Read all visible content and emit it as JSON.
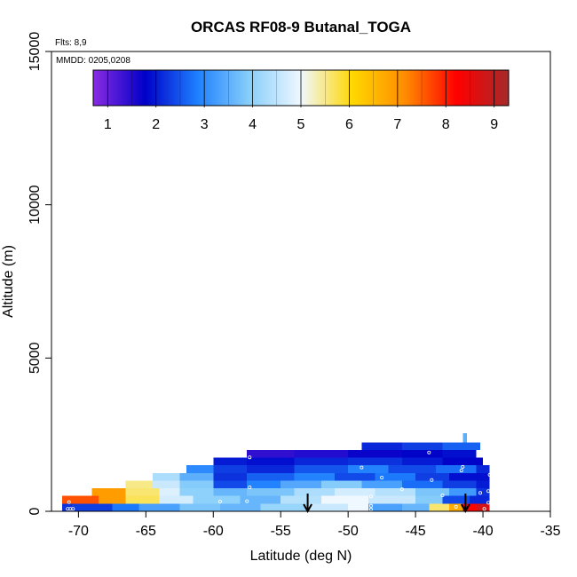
{
  "chart_data": {
    "type": "heatmap",
    "title": "ORCAS RF08-9 Butanal_TOGA",
    "xlabel": "Latitude (deg N)",
    "ylabel": "Altitude (m)",
    "flights_note": "Flts: 8,9",
    "date_note": "MMDD: 0205,0208",
    "xlim": [
      -72,
      -35
    ],
    "ylim": [
      0,
      15000
    ],
    "x_ticks": [
      -70,
      -65,
      -60,
      -55,
      -50,
      -45,
      -40,
      -35
    ],
    "y_ticks": [
      0,
      5000,
      10000,
      15000
    ],
    "colorbar": {
      "min": 0.7,
      "max": 9.3,
      "ticks": [
        1,
        2,
        3,
        4,
        5,
        6,
        7,
        8,
        9
      ],
      "colors": [
        "#8a2be2",
        "#0000c8",
        "#1e7fff",
        "#87cefa",
        "#f0f8ff",
        "#ffd700",
        "#ff8c00",
        "#ff0000",
        "#a52a2a"
      ]
    },
    "arrows_x": [
      -53,
      -41.3
    ],
    "rows": [
      {
        "y0": 0,
        "y1": 250,
        "segments": [
          {
            "x0": -71.2,
            "x1": -70.5,
            "v": 2.2
          },
          {
            "x0": -70.5,
            "x1": -67.5,
            "v": 2.3
          },
          {
            "x0": -67.5,
            "x1": -65.5,
            "v": 2.8
          },
          {
            "x0": -65.5,
            "x1": -62.5,
            "v": 3.3
          },
          {
            "x0": -62.5,
            "x1": -59.5,
            "v": 3.8
          },
          {
            "x0": -59.5,
            "x1": -56.5,
            "v": 3.6
          },
          {
            "x0": -56.5,
            "x1": -53,
            "v": 4.1
          },
          {
            "x0": -53,
            "x1": -50,
            "v": 4.6
          },
          {
            "x0": -50,
            "x1": -48.5,
            "v": 5.0
          },
          {
            "x0": -48.5,
            "x1": -46,
            "v": 3.3
          },
          {
            "x0": -46,
            "x1": -44,
            "v": 3.6
          },
          {
            "x0": -44,
            "x1": -42.5,
            "v": 5.6
          },
          {
            "x0": -42.5,
            "x1": -41.5,
            "v": 6.7
          },
          {
            "x0": -41.5,
            "x1": -40.5,
            "v": 8.2
          },
          {
            "x0": -40.5,
            "x1": -39.5,
            "v": 8.7
          }
        ]
      },
      {
        "y0": 250,
        "y1": 500,
        "segments": [
          {
            "x0": -71.2,
            "x1": -68.5,
            "v": 7.6
          },
          {
            "x0": -68.5,
            "x1": -66.5,
            "v": 6.9
          },
          {
            "x0": -66.5,
            "x1": -64,
            "v": 5.7
          },
          {
            "x0": -64,
            "x1": -61.5,
            "v": 4.7
          },
          {
            "x0": -61.5,
            "x1": -58,
            "v": 4.0
          },
          {
            "x0": -58,
            "x1": -55,
            "v": 3.6
          },
          {
            "x0": -55,
            "x1": -52,
            "v": 4.4
          },
          {
            "x0": -52,
            "x1": -48.5,
            "v": 5.0
          },
          {
            "x0": -48.5,
            "x1": -45,
            "v": 4.6
          },
          {
            "x0": -45,
            "x1": -43,
            "v": 3.9
          },
          {
            "x0": -43,
            "x1": -41,
            "v": 2.4
          },
          {
            "x0": -41,
            "x1": -39.5,
            "v": 2.1
          }
        ]
      },
      {
        "y0": 500,
        "y1": 750,
        "segments": [
          {
            "x0": -69,
            "x1": -66.5,
            "v": 6.9
          },
          {
            "x0": -66.5,
            "x1": -64,
            "v": 5.6
          },
          {
            "x0": -64,
            "x1": -62.5,
            "v": 4.8
          },
          {
            "x0": -62.5,
            "x1": -60,
            "v": 4.0
          },
          {
            "x0": -60,
            "x1": -57.5,
            "v": 3.6
          },
          {
            "x0": -57.5,
            "x1": -54,
            "v": 3.8
          },
          {
            "x0": -54,
            "x1": -51,
            "v": 4.3
          },
          {
            "x0": -51,
            "x1": -48,
            "v": 4.7
          },
          {
            "x0": -48,
            "x1": -45,
            "v": 4.4
          },
          {
            "x0": -45,
            "x1": -42.5,
            "v": 3.8
          },
          {
            "x0": -42.5,
            "x1": -40.5,
            "v": 3.2
          },
          {
            "x0": -40.5,
            "x1": -39.5,
            "v": 2.2
          }
        ]
      },
      {
        "y0": 750,
        "y1": 1000,
        "segments": [
          {
            "x0": -66.5,
            "x1": -64.5,
            "v": 5.5
          },
          {
            "x0": -64.5,
            "x1": -62.5,
            "v": 4.6
          },
          {
            "x0": -62.5,
            "x1": -60,
            "v": 3.9
          },
          {
            "x0": -60,
            "x1": -57.5,
            "v": 2.4
          },
          {
            "x0": -57.5,
            "x1": -55,
            "v": 2.9
          },
          {
            "x0": -55,
            "x1": -52,
            "v": 3.4
          },
          {
            "x0": -52,
            "x1": -49,
            "v": 3.9
          },
          {
            "x0": -49,
            "x1": -46,
            "v": 3.3
          },
          {
            "x0": -46,
            "x1": -43,
            "v": 2.7
          },
          {
            "x0": -43,
            "x1": -40.5,
            "v": 2.3
          },
          {
            "x0": -40.5,
            "x1": -39.5,
            "v": 2.0
          }
        ]
      },
      {
        "y0": 1000,
        "y1": 1250,
        "segments": [
          {
            "x0": -64.5,
            "x1": -62.5,
            "v": 4.3
          },
          {
            "x0": -62.5,
            "x1": -60,
            "v": 3.5
          },
          {
            "x0": -60,
            "x1": -57.5,
            "v": 2.2
          },
          {
            "x0": -57.5,
            "x1": -54,
            "v": 2.6
          },
          {
            "x0": -54,
            "x1": -51,
            "v": 2.9
          },
          {
            "x0": -51,
            "x1": -48,
            "v": 2.4
          },
          {
            "x0": -48,
            "x1": -45,
            "v": 2.8
          },
          {
            "x0": -45,
            "x1": -42.5,
            "v": 2.3
          },
          {
            "x0": -42.5,
            "x1": -39.5,
            "v": 1.9
          }
        ]
      },
      {
        "y0": 1250,
        "y1": 1500,
        "segments": [
          {
            "x0": -62,
            "x1": -60,
            "v": 3.0
          },
          {
            "x0": -60,
            "x1": -57.5,
            "v": 2.3
          },
          {
            "x0": -57.5,
            "x1": -54,
            "v": 2.1
          },
          {
            "x0": -54,
            "x1": -50,
            "v": 2.5
          },
          {
            "x0": -50,
            "x1": -47,
            "v": 2.9
          },
          {
            "x0": -47,
            "x1": -43.5,
            "v": 2.4
          },
          {
            "x0": -43.5,
            "x1": -40.5,
            "v": 2.7
          },
          {
            "x0": -40.5,
            "x1": -39.5,
            "v": 2.1
          }
        ]
      },
      {
        "y0": 1500,
        "y1": 1750,
        "segments": [
          {
            "x0": -60,
            "x1": -57.5,
            "v": 2.0
          },
          {
            "x0": -57.5,
            "x1": -54,
            "v": 1.9
          },
          {
            "x0": -54,
            "x1": -50,
            "v": 2.1
          },
          {
            "x0": -50,
            "x1": -46,
            "v": 2.2
          },
          {
            "x0": -46,
            "x1": -43,
            "v": 2.0
          },
          {
            "x0": -43,
            "x1": -40,
            "v": 1.8
          }
        ]
      },
      {
        "y0": 1750,
        "y1": 2000,
        "segments": [
          {
            "x0": -57.5,
            "x1": -54,
            "v": 1.4
          },
          {
            "x0": -54,
            "x1": -50,
            "v": 1.5
          },
          {
            "x0": -50,
            "x1": -46,
            "v": 1.7
          },
          {
            "x0": -46,
            "x1": -43,
            "v": 1.8
          },
          {
            "x0": -43,
            "x1": -40.5,
            "v": 1.9
          }
        ]
      },
      {
        "y0": 2000,
        "y1": 2250,
        "segments": [
          {
            "x0": -49,
            "x1": -46,
            "v": 2.1
          },
          {
            "x0": -46,
            "x1": -43,
            "v": 2.3
          },
          {
            "x0": -43,
            "x1": -40.2,
            "v": 2.6
          }
        ]
      },
      {
        "y0": 2250,
        "y1": 2550,
        "segments": [
          {
            "x0": -41.5,
            "x1": -41.2,
            "v": 3.5
          }
        ]
      }
    ],
    "points": [
      {
        "x": -70.8,
        "y": 80
      },
      {
        "x": -70.6,
        "y": 80
      },
      {
        "x": -70.4,
        "y": 80
      },
      {
        "x": -70.7,
        "y": 300
      },
      {
        "x": -59.5,
        "y": 320
      },
      {
        "x": -57.5,
        "y": 330
      },
      {
        "x": -57.3,
        "y": 780
      },
      {
        "x": -57.3,
        "y": 1760
      },
      {
        "x": -49,
        "y": 1430
      },
      {
        "x": -48.3,
        "y": 60
      },
      {
        "x": -48.3,
        "y": 180
      },
      {
        "x": -48.3,
        "y": 480
      },
      {
        "x": -47.5,
        "y": 1100
      },
      {
        "x": -46,
        "y": 720
      },
      {
        "x": -44,
        "y": 1920
      },
      {
        "x": -43.8,
        "y": 1020
      },
      {
        "x": -43,
        "y": 520
      },
      {
        "x": -42,
        "y": 150
      },
      {
        "x": -41.6,
        "y": 1330
      },
      {
        "x": -41.5,
        "y": 1450
      },
      {
        "x": -40.2,
        "y": 600
      },
      {
        "x": -39.9,
        "y": 80
      },
      {
        "x": -39.8,
        "y": 1630
      },
      {
        "x": -39.6,
        "y": 280
      },
      {
        "x": -39.6,
        "y": 660
      },
      {
        "x": -39.5,
        "y": 1190
      }
    ]
  }
}
